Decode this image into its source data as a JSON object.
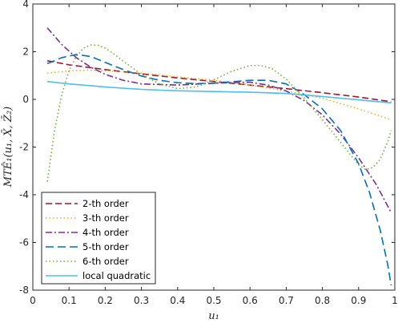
{
  "chart_data": {
    "type": "line",
    "xlabel": "u₁",
    "ylabel": "MTÊ₁(u₁, X̄, Z̄₂)",
    "xlim": [
      0,
      1
    ],
    "ylim": [
      -8,
      4
    ],
    "xticks": [
      "0",
      "0.1",
      "0.2",
      "0.3",
      "0.4",
      "0.5",
      "0.6",
      "0.7",
      "0.8",
      "0.9",
      "1"
    ],
    "yticks": [
      "-8",
      "-6",
      "-4",
      "-2",
      "0",
      "2",
      "4"
    ],
    "grid": false,
    "legend_position": "bottom-left",
    "series": [
      {
        "name": "2-th order",
        "color": "#A2142F",
        "dash": "dashed",
        "x": [
          0.04,
          0.1,
          0.2,
          0.3,
          0.4,
          0.5,
          0.6,
          0.7,
          0.8,
          0.9,
          0.99
        ],
        "y": [
          1.62,
          1.45,
          1.25,
          1.07,
          0.9,
          0.75,
          0.6,
          0.45,
          0.28,
          0.1,
          -0.1
        ]
      },
      {
        "name": "3-th order",
        "color": "#EDB120",
        "dash": "dotted",
        "x": [
          0.04,
          0.1,
          0.15,
          0.2,
          0.25,
          0.3,
          0.4,
          0.5,
          0.6,
          0.7,
          0.8,
          0.9,
          0.99
        ],
        "y": [
          1.1,
          1.2,
          1.22,
          1.2,
          1.15,
          1.1,
          0.95,
          0.8,
          0.6,
          0.35,
          0.05,
          -0.4,
          -0.85
        ]
      },
      {
        "name": "4-th order",
        "color": "#7E2F8E",
        "dash": "dashdot",
        "x": [
          0.04,
          0.08,
          0.12,
          0.16,
          0.2,
          0.25,
          0.3,
          0.4,
          0.5,
          0.6,
          0.65,
          0.7,
          0.75,
          0.8,
          0.85,
          0.9,
          0.95,
          0.99
        ],
        "y": [
          3.0,
          2.3,
          1.75,
          1.35,
          1.05,
          0.8,
          0.65,
          0.6,
          0.68,
          0.72,
          0.6,
          0.35,
          -0.05,
          -0.65,
          -1.45,
          -2.45,
          -3.6,
          -4.75
        ]
      },
      {
        "name": "5-th order",
        "color": "#0072BD",
        "dash": "longdash",
        "x": [
          0.04,
          0.08,
          0.12,
          0.16,
          0.2,
          0.25,
          0.3,
          0.35,
          0.4,
          0.45,
          0.5,
          0.55,
          0.6,
          0.65,
          0.7,
          0.75,
          0.8,
          0.85,
          0.9,
          0.93,
          0.96,
          0.98,
          0.99
        ],
        "y": [
          1.5,
          1.75,
          1.88,
          1.8,
          1.55,
          1.25,
          0.98,
          0.8,
          0.7,
          0.66,
          0.68,
          0.74,
          0.8,
          0.8,
          0.65,
          0.2,
          -0.4,
          -1.3,
          -2.7,
          -3.9,
          -5.5,
          -6.9,
          -7.8
        ]
      },
      {
        "name": "6-th order",
        "color": "#77AC30",
        "dash": "dotted",
        "x": [
          0.04,
          0.06,
          0.08,
          0.1,
          0.12,
          0.14,
          0.16,
          0.18,
          0.2,
          0.22,
          0.25,
          0.3,
          0.35,
          0.4,
          0.45,
          0.5,
          0.55,
          0.6,
          0.63,
          0.66,
          0.7,
          0.75,
          0.8,
          0.85,
          0.9,
          0.92,
          0.94,
          0.96,
          0.98,
          0.99
        ],
        "y": [
          -3.45,
          -1.3,
          0.2,
          1.2,
          1.8,
          2.15,
          2.28,
          2.27,
          2.15,
          1.95,
          1.6,
          1.05,
          0.65,
          0.45,
          0.52,
          0.82,
          1.18,
          1.42,
          1.42,
          1.3,
          0.85,
          0.05,
          -0.85,
          -1.8,
          -2.75,
          -2.95,
          -2.85,
          -2.5,
          -1.8,
          -1.3
        ]
      },
      {
        "name": "local quadratic",
        "color": "#4DBEEE",
        "dash": "solid",
        "x": [
          0.04,
          0.1,
          0.2,
          0.3,
          0.4,
          0.5,
          0.6,
          0.7,
          0.8,
          0.9,
          0.99
        ],
        "y": [
          0.75,
          0.65,
          0.52,
          0.42,
          0.36,
          0.33,
          0.3,
          0.25,
          0.12,
          -0.02,
          -0.15
        ]
      }
    ]
  }
}
